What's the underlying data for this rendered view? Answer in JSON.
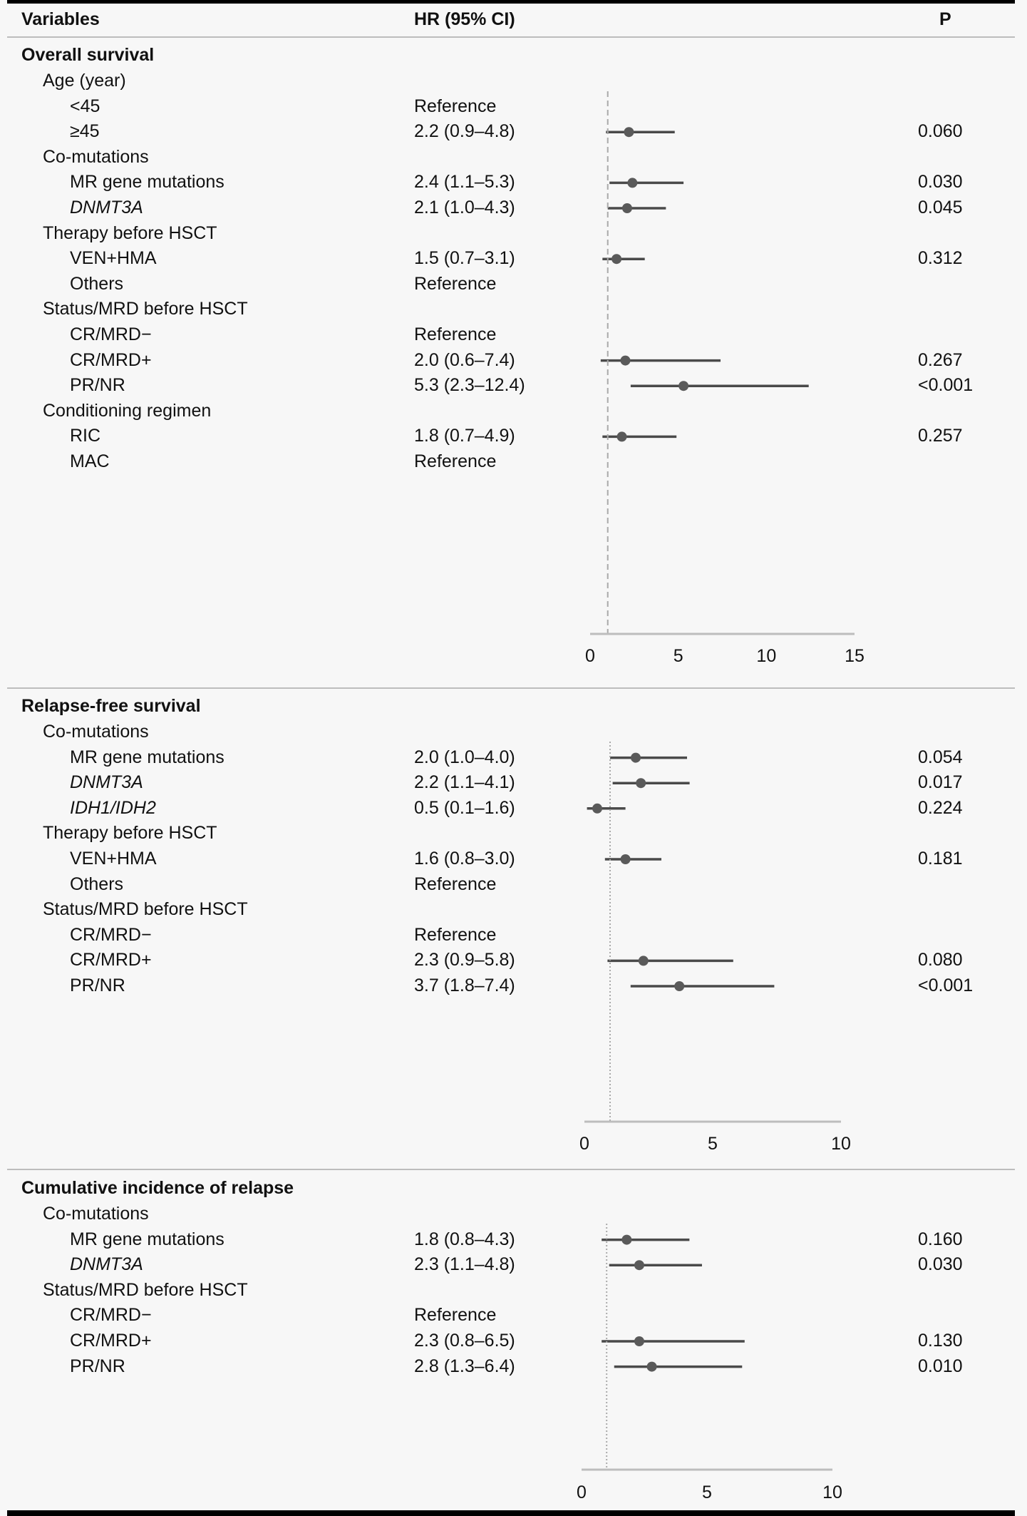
{
  "header": {
    "variables": "Variables",
    "hr": "HR (95% CI)",
    "p": "P"
  },
  "chart_data": [
    {
      "type": "forest",
      "title": "Overall survival",
      "xlim": [
        0,
        15
      ],
      "ticks": [
        "0",
        "5",
        "10",
        "15"
      ],
      "tick_values": [
        0,
        5,
        10,
        15
      ],
      "reference_line": 1,
      "reference_style": "dashed",
      "rows": [
        {
          "label": "Age (year)",
          "level": 1
        },
        {
          "label": "<45",
          "level": 2,
          "hr_text": "Reference"
        },
        {
          "label": "≥45",
          "level": 2,
          "hr_text": "2.2 (0.9–4.8)",
          "hr": 2.2,
          "lo": 0.9,
          "hi": 4.8,
          "p": "0.060"
        },
        {
          "label": "Co-mutations",
          "level": 1
        },
        {
          "label": "MR gene mutations",
          "level": 2,
          "hr_text": "2.4 (1.1–5.3)",
          "hr": 2.4,
          "lo": 1.1,
          "hi": 5.3,
          "p": "0.030"
        },
        {
          "label": "DNMT3A",
          "level": 2,
          "italic": true,
          "hr_text": "2.1 (1.0–4.3)",
          "hr": 2.1,
          "lo": 1.0,
          "hi": 4.3,
          "p": "0.045"
        },
        {
          "label": "Therapy before HSCT",
          "level": 1
        },
        {
          "label": "VEN+HMA",
          "level": 2,
          "hr_text": "1.5 (0.7–3.1)",
          "hr": 1.5,
          "lo": 0.7,
          "hi": 3.1,
          "p": "0.312"
        },
        {
          "label": "Others",
          "level": 2,
          "hr_text": "Reference"
        },
        {
          "label": "Status/MRD before HSCT",
          "level": 1
        },
        {
          "label": "CR/MRD−",
          "level": 2,
          "hr_text": "Reference"
        },
        {
          "label": "CR/MRD+",
          "level": 2,
          "hr_text": "2.0 (0.6–7.4)",
          "hr": 2.0,
          "lo": 0.6,
          "hi": 7.4,
          "p": "0.267"
        },
        {
          "label": "PR/NR",
          "level": 2,
          "hr_text": "5.3 (2.3–12.4)",
          "hr": 5.3,
          "lo": 2.3,
          "hi": 12.4,
          "p": "<0.001"
        },
        {
          "label": "Conditioning regimen",
          "level": 1
        },
        {
          "label": "RIC",
          "level": 2,
          "hr_text": "1.8 (0.7–4.9)",
          "hr": 1.8,
          "lo": 0.7,
          "hi": 4.9,
          "p": "0.257"
        },
        {
          "label": "MAC",
          "level": 2,
          "hr_text": "Reference"
        }
      ]
    },
    {
      "type": "forest",
      "title": "Relapse-free survival",
      "xlim": [
        0,
        10
      ],
      "ticks": [
        "0",
        "5",
        "10"
      ],
      "tick_values": [
        0,
        5,
        10
      ],
      "reference_line": 1,
      "reference_style": "dotted",
      "rows": [
        {
          "label": "Co-mutations",
          "level": 1
        },
        {
          "label": "MR gene mutations",
          "level": 2,
          "hr_text": "2.0 (1.0–4.0)",
          "hr": 2.0,
          "lo": 1.0,
          "hi": 4.0,
          "p": "0.054"
        },
        {
          "label": "DNMT3A",
          "level": 2,
          "italic": true,
          "hr_text": "2.2 (1.1–4.1)",
          "hr": 2.2,
          "lo": 1.1,
          "hi": 4.1,
          "p": "0.017"
        },
        {
          "label": "IDH1/IDH2",
          "level": 2,
          "italic": true,
          "hr_text": "0.5 (0.1–1.6)",
          "hr": 0.5,
          "lo": 0.1,
          "hi": 1.6,
          "p": "0.224"
        },
        {
          "label": "Therapy before HSCT",
          "level": 1
        },
        {
          "label": "VEN+HMA",
          "level": 2,
          "hr_text": "1.6 (0.8–3.0)",
          "hr": 1.6,
          "lo": 0.8,
          "hi": 3.0,
          "p": "0.181"
        },
        {
          "label": "Others",
          "level": 2,
          "hr_text": "Reference"
        },
        {
          "label": "Status/MRD before HSCT",
          "level": 1
        },
        {
          "label": "CR/MRD−",
          "level": 2,
          "hr_text": "Reference"
        },
        {
          "label": "CR/MRD+",
          "level": 2,
          "hr_text": "2.3 (0.9–5.8)",
          "hr": 2.3,
          "lo": 0.9,
          "hi": 5.8,
          "p": "0.080"
        },
        {
          "label": "PR/NR",
          "level": 2,
          "hr_text": "3.7 (1.8–7.4)",
          "hr": 3.7,
          "lo": 1.8,
          "hi": 7.4,
          "p": "<0.001"
        }
      ]
    },
    {
      "type": "forest",
      "title": "Cumulative incidence of relapse",
      "xlim": [
        0,
        10
      ],
      "ticks": [
        "0",
        "5",
        "10"
      ],
      "tick_values": [
        0,
        5,
        10
      ],
      "reference_line": 1,
      "reference_style": "dotted",
      "rows": [
        {
          "label": "Co-mutations",
          "level": 1
        },
        {
          "label": "MR gene mutations",
          "level": 2,
          "hr_text": "1.8 (0.8–4.3)",
          "hr": 1.8,
          "lo": 0.8,
          "hi": 4.3,
          "p": "0.160"
        },
        {
          "label": "DNMT3A",
          "level": 2,
          "italic": true,
          "hr_text": "2.3 (1.1–4.8)",
          "hr": 2.3,
          "lo": 1.1,
          "hi": 4.8,
          "p": "0.030"
        },
        {
          "label": "Status/MRD before HSCT",
          "level": 1
        },
        {
          "label": "CR/MRD−",
          "level": 2,
          "hr_text": "Reference"
        },
        {
          "label": "CR/MRD+",
          "level": 2,
          "hr_text": "2.3 (0.8–6.5)",
          "hr": 2.3,
          "lo": 0.8,
          "hi": 6.5,
          "p": "0.130"
        },
        {
          "label": "PR/NR",
          "level": 2,
          "hr_text": "2.8 (1.3–6.4)",
          "hr": 2.8,
          "lo": 1.3,
          "hi": 6.4,
          "p": "0.010"
        }
      ]
    }
  ],
  "colors": {
    "marker": "#5a5a5a",
    "ci_line": "#4a4a4a",
    "axis": "#bdbdbd",
    "reference_line": "#aaaaaa"
  }
}
